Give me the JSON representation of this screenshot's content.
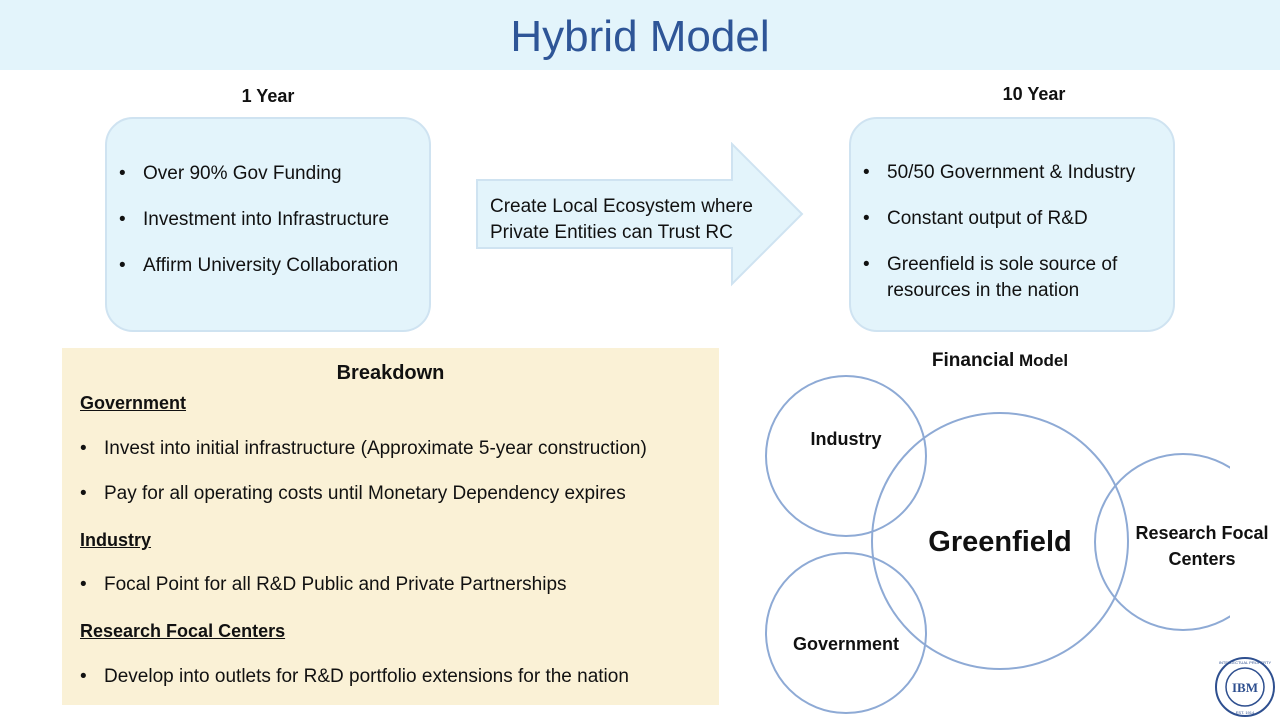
{
  "title": "Hybrid Model",
  "year1": {
    "heading": "1 Year",
    "items": [
      "Over 90% Gov Funding",
      "Investment into Infrastructure",
      "Affirm University Collaboration"
    ]
  },
  "arrow": {
    "line1": "Create Local Ecosystem where",
    "line2": "Private Entities can Trust RC"
  },
  "year10": {
    "heading": "10 Year",
    "items": [
      "50/50 Government & Industry",
      "Constant output of R&D",
      "Greenfield is sole source of",
      "resources in the nation"
    ]
  },
  "breakdown": {
    "title": "Breakdown",
    "government": {
      "heading": "Government",
      "items": [
        "Invest into initial infrastructure (Approximate 5-year construction)",
        "Pay for all operating costs until Monetary Dependency expires"
      ]
    },
    "industry": {
      "heading": "Industry",
      "items": [
        "Focal Point for all R&D Public and Private Partnerships"
      ]
    },
    "research": {
      "heading": "Research Focal Centers",
      "items": [
        "Develop into outlets for R&D portfolio extensions for the nation"
      ]
    }
  },
  "financial": {
    "title_bold": "Financial",
    "title_rest": " Model",
    "industry": "Industry",
    "greenfield": "Greenfield",
    "government": "Government",
    "research_line1": "Research Focal",
    "research_line2": "Centers"
  },
  "logo": {
    "main": "IBM",
    "ring": "INTELLECTUAL PROPERTY",
    "est": "EST. 1914"
  },
  "colors": {
    "title_band": "#e3f4fb",
    "title_text": "#2e5597",
    "card_fill": "#e3f4fb",
    "breakdown_fill": "#faf1d6",
    "circle_stroke": "#8eaad5"
  }
}
